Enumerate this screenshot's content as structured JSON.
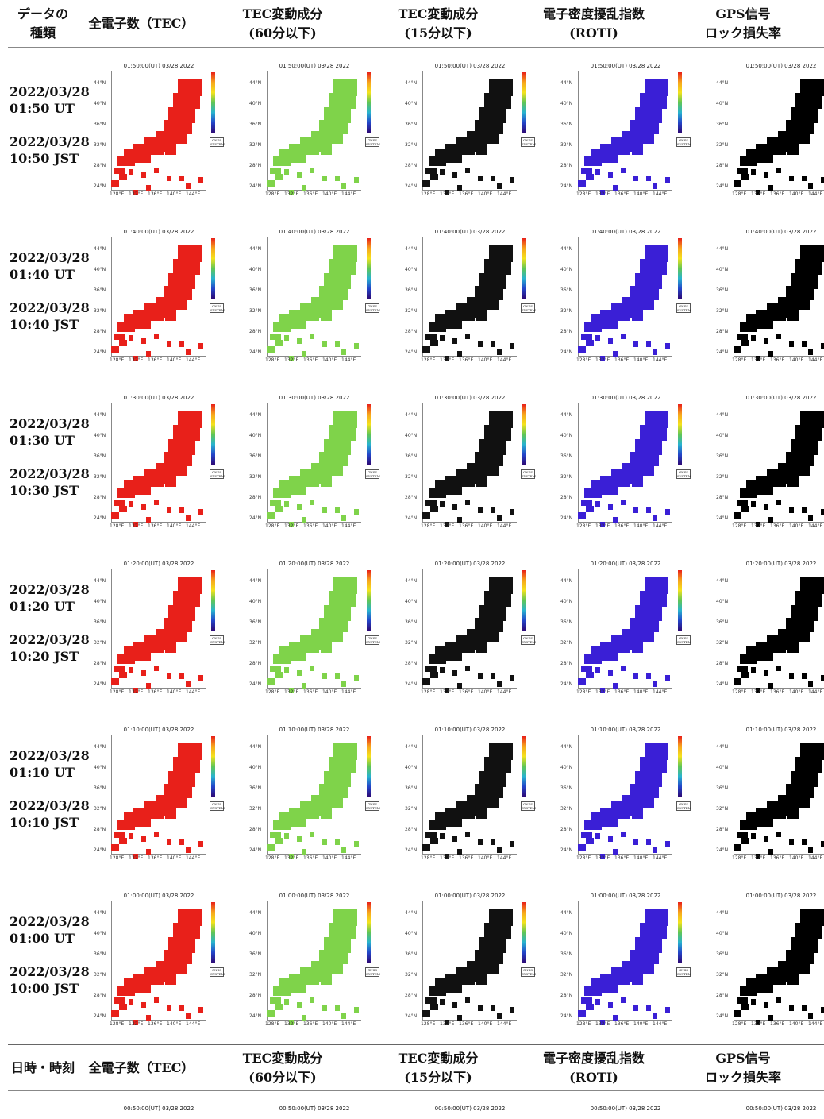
{
  "header_top": {
    "col0": [
      "データの",
      "種類"
    ],
    "col1": "全電子数（TEC）",
    "col2": [
      "TEC変動成分",
      "(60分以下)"
    ],
    "col3": [
      "TEC変動成分",
      "(15分以下)"
    ],
    "col4": [
      "電子密度擾乱指数",
      "(ROTI)"
    ],
    "col5": [
      "GPS信号",
      "ロック損失率"
    ]
  },
  "header_bottom": {
    "col0": "日時・時刻",
    "col1": "全電子数（TEC）",
    "col2": [
      "TEC変動成分",
      "(60分以下)"
    ],
    "col3": [
      "TEC変動成分",
      "(15分以下)"
    ],
    "col4": [
      "電子密度擾乱指数",
      "(ROTI)"
    ],
    "col5": [
      "GPS信号",
      "ロック損失率"
    ]
  },
  "rows": [
    {
      "ut_date": "2022/03/28",
      "ut_time": "01:50 UT",
      "jst_date": "2022/03/28",
      "jst_time": "10:50 JST",
      "map_title": "01:50:00(UT) 03/28 2022"
    },
    {
      "ut_date": "2022/03/28",
      "ut_time": "01:40 UT",
      "jst_date": "2022/03/28",
      "jst_time": "10:40 JST",
      "map_title": "01:40:00(UT) 03/28 2022"
    },
    {
      "ut_date": "2022/03/28",
      "ut_time": "01:30 UT",
      "jst_date": "2022/03/28",
      "jst_time": "10:30 JST",
      "map_title": "01:30:00(UT) 03/28 2022"
    },
    {
      "ut_date": "2022/03/28",
      "ut_time": "01:20 UT",
      "jst_date": "2022/03/28",
      "jst_time": "10:20 JST",
      "map_title": "01:20:00(UT) 03/28 2022"
    },
    {
      "ut_date": "2022/03/28",
      "ut_time": "01:10 UT",
      "jst_date": "2022/03/28",
      "jst_time": "10:10 JST",
      "map_title": "01:10:00(UT) 03/28 2022"
    },
    {
      "ut_date": "2022/03/28",
      "ut_time": "01:00 UT",
      "jst_date": "2022/03/28",
      "jst_time": "10:00 JST",
      "map_title": "01:00:00(UT) 03/28 2022"
    }
  ],
  "partial_row_title": "00:50:00(UT) 03/28 2022",
  "map_axis": {
    "lat_labels": [
      "44°N",
      "40°N",
      "36°N",
      "32°N",
      "28°N",
      "24°N"
    ],
    "lon_labels": [
      "128°E",
      "132°E",
      "136°E",
      "140°E",
      "144°E"
    ]
  },
  "map_badge": "GNSS SYSTEM",
  "panel_colors": {
    "tec": "#e8201a",
    "tec60": "#7fd34a",
    "tec15": "#111111",
    "roti": "#3a1fd6",
    "lock": "#000000"
  }
}
